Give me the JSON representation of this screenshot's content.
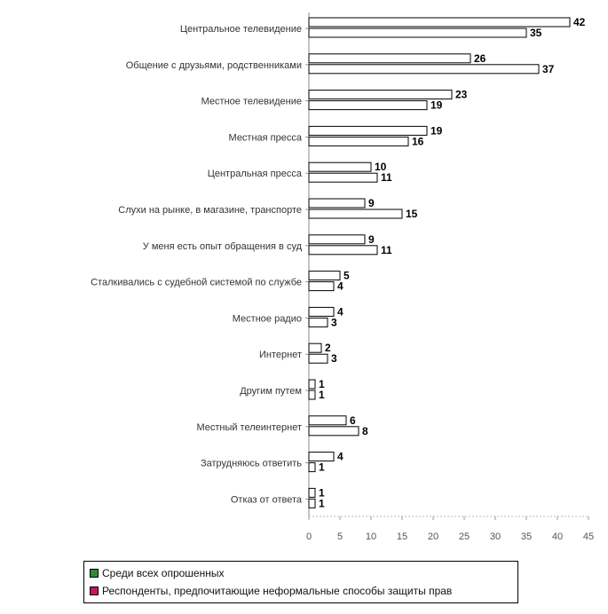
{
  "chart_data": {
    "type": "bar",
    "orientation": "horizontal",
    "categories": [
      "Центральное телевидение",
      "Общение с друзьями, родственниками",
      "Местное телевидение",
      "Местная пресса",
      "Центральная пресса",
      "Слухи на рынке, в магазине, транспорте",
      "У меня есть опыт обращения в суд",
      "Сталкивались с судебной системой по службе",
      "Местное радио",
      "Интернет",
      "Другим путем",
      "Местный телеинтернет",
      "Затрудняюсь ответить",
      "Отказ от ответа"
    ],
    "series": [
      {
        "name": "Среди всех опрошенных",
        "color": "#2e8b3a",
        "values": [
          42,
          26,
          23,
          19,
          10,
          9,
          9,
          5,
          4,
          2,
          1,
          6,
          4,
          1
        ]
      },
      {
        "name": "Респонденты, предпочитающие неформальные способы защиты прав",
        "color": "#c2185b",
        "values": [
          35,
          37,
          19,
          16,
          11,
          15,
          11,
          4,
          3,
          3,
          1,
          8,
          1,
          1
        ]
      }
    ],
    "x_ticks": [
      "0",
      "5",
      "10",
      "15",
      "20",
      "25",
      "30",
      "35",
      "40",
      "45"
    ],
    "xlim": [
      0,
      45
    ],
    "grid": false,
    "legend_position": "bottom"
  }
}
